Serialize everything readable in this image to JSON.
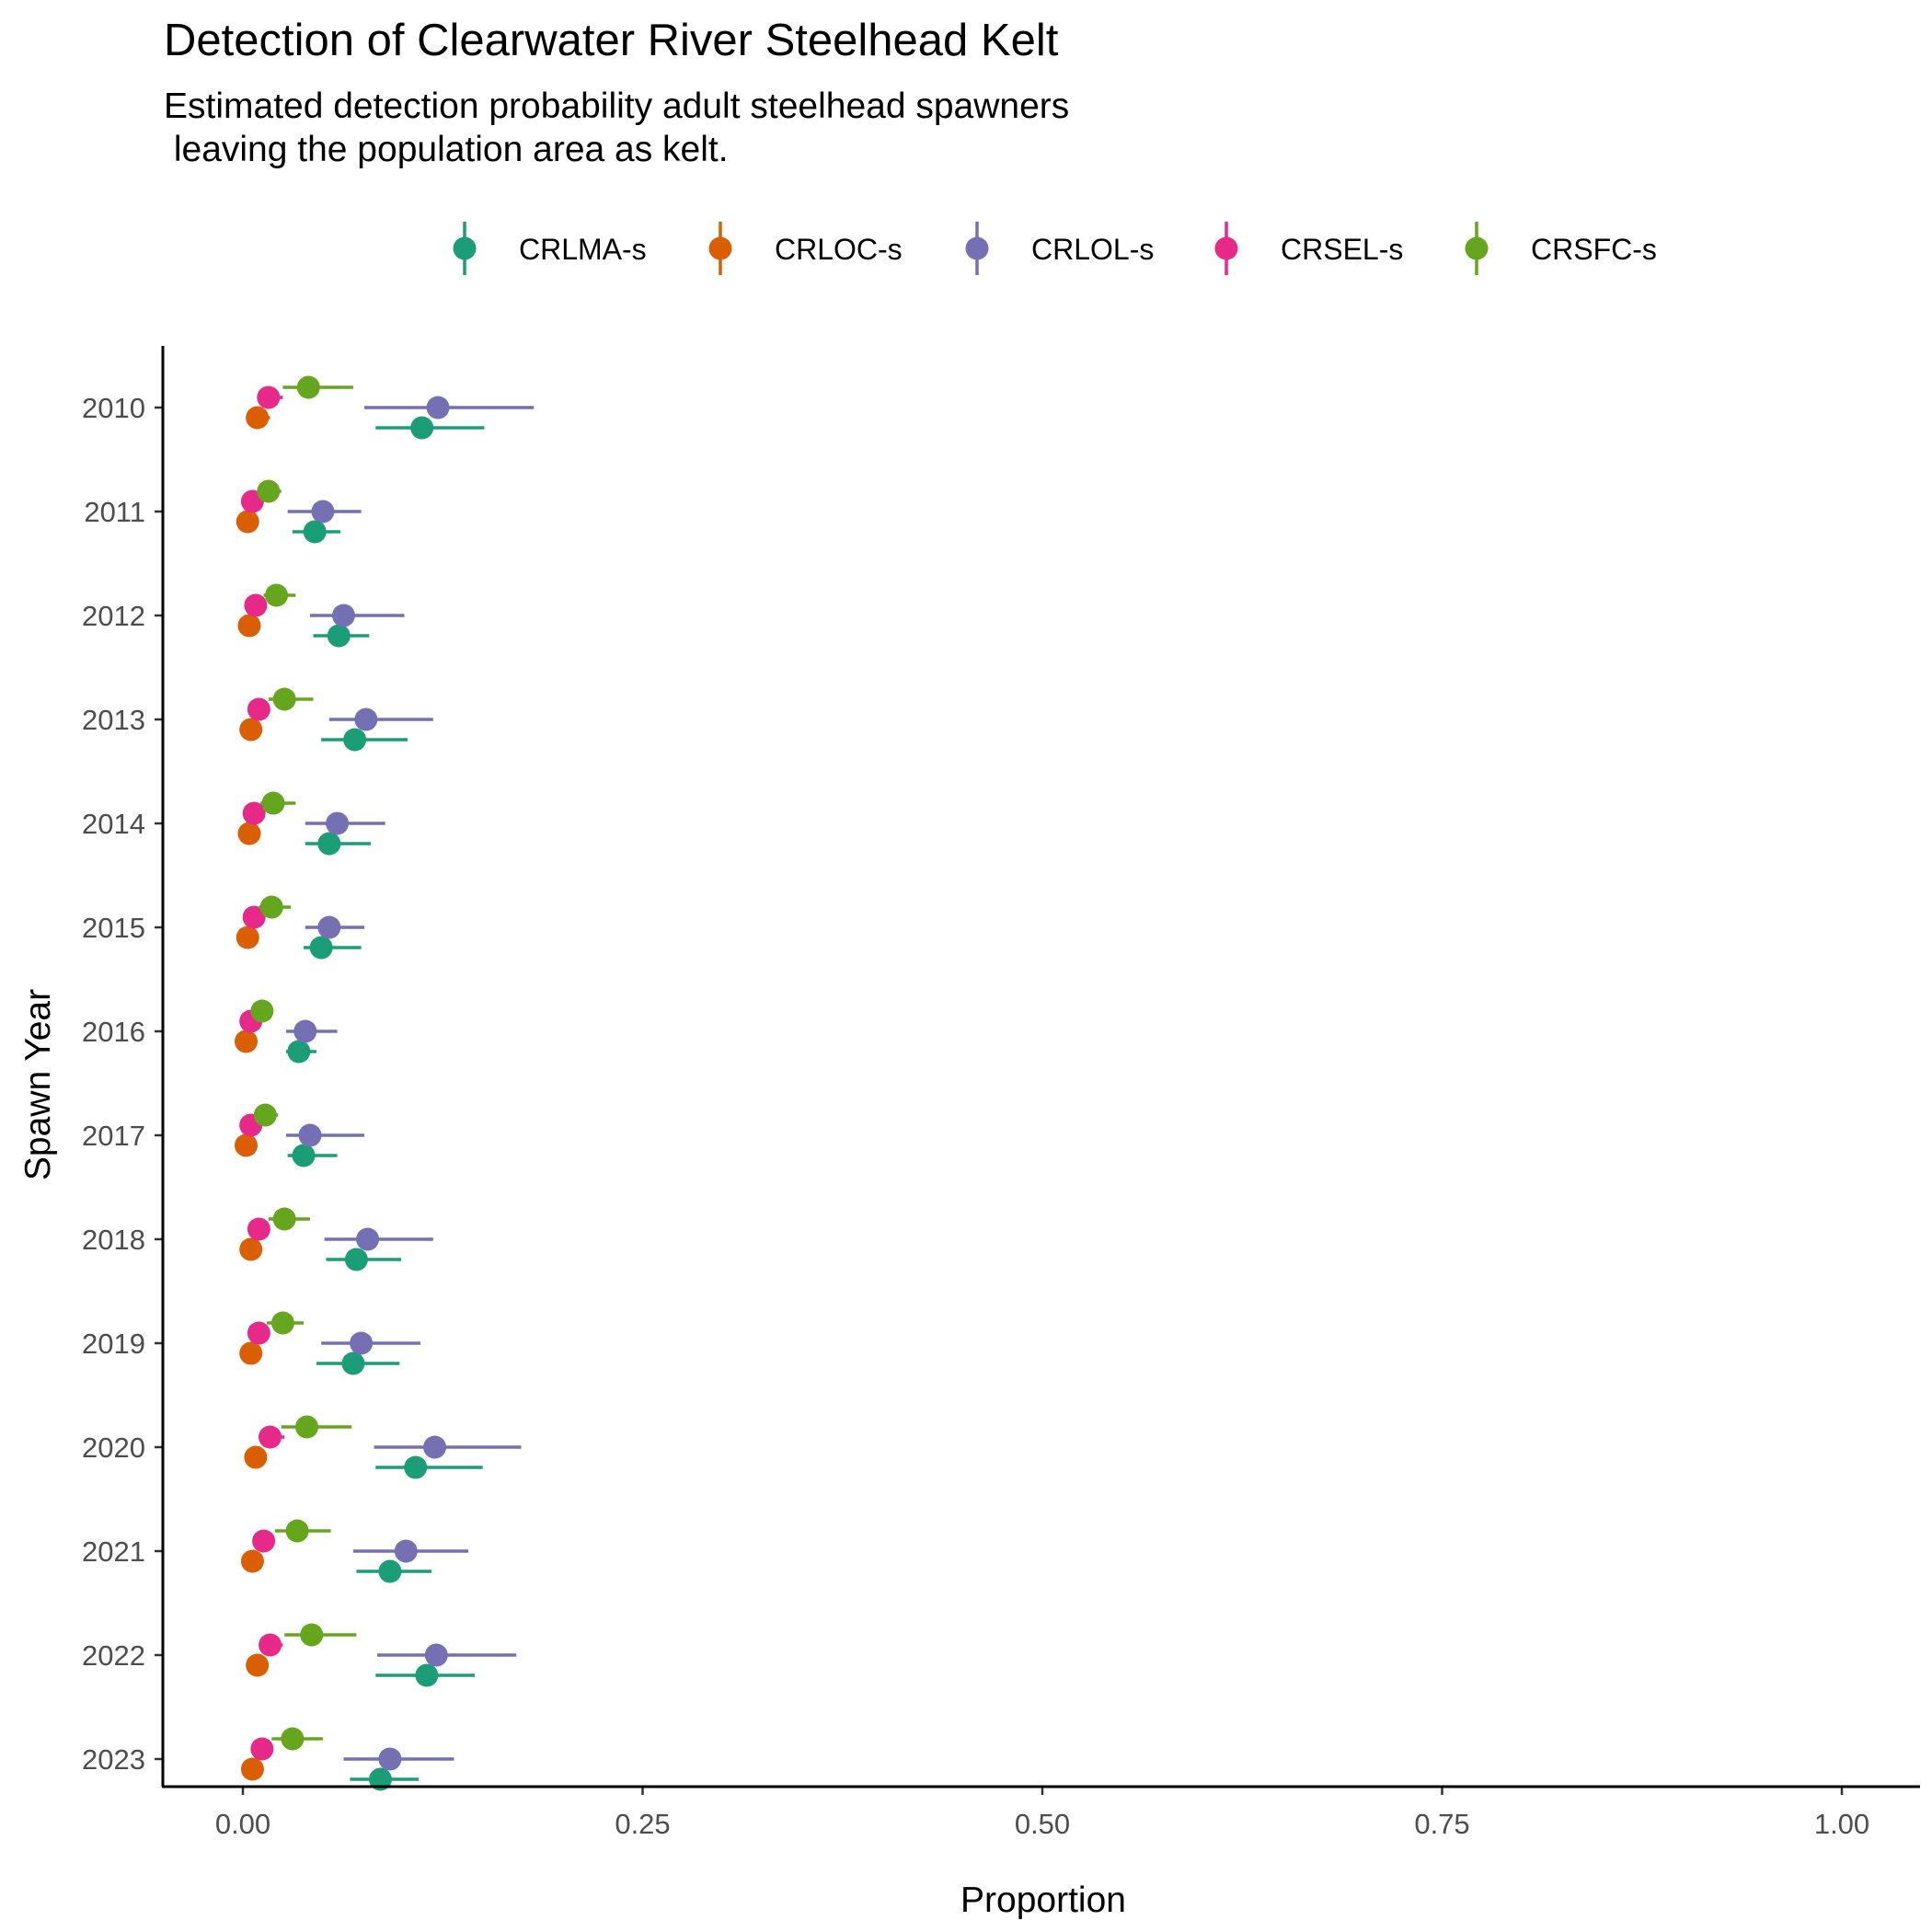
{
  "chart_data": {
    "type": "scatter",
    "title": "Detection of Clearwater River Steelhead Kelt",
    "subtitle": "Estimated detection probability adult steelhead spawners\n leaving the population area as kelt.",
    "xlabel": "Proportion",
    "ylabel": "Spawn Year",
    "xlim": [
      0,
      1
    ],
    "x_ticks": [
      "0.00",
      "0.25",
      "0.50",
      "0.75",
      "1.00"
    ],
    "categories": [
      "2010",
      "2011",
      "2012",
      "2013",
      "2014",
      "2015",
      "2016",
      "2017",
      "2018",
      "2019",
      "2020",
      "2021",
      "2022",
      "2023"
    ],
    "legend_position": "top",
    "grid": false,
    "series": [
      {
        "name": "CRLMA-s",
        "color": "#1b9e77",
        "values": [
          0.112,
          0.045,
          0.06,
          0.07,
          0.054,
          0.049,
          0.035,
          0.038,
          0.071,
          0.069,
          0.108,
          0.092,
          0.115,
          0.086
        ],
        "lower": [
          0.083,
          0.031,
          0.044,
          0.049,
          0.039,
          0.038,
          0.027,
          0.028,
          0.052,
          0.046,
          0.083,
          0.071,
          0.083,
          0.067
        ],
        "upper": [
          0.151,
          0.061,
          0.079,
          0.103,
          0.08,
          0.074,
          0.046,
          0.059,
          0.099,
          0.098,
          0.15,
          0.118,
          0.145,
          0.11
        ]
      },
      {
        "name": "CRLOC-s",
        "color": "#d95f02",
        "values": [
          0.009,
          0.003,
          0.004,
          0.005,
          0.004,
          0.003,
          0.002,
          0.002,
          0.005,
          0.005,
          0.008,
          0.006,
          0.009,
          0.006
        ],
        "lower": [
          0.004,
          0.001,
          0.002,
          0.002,
          0.002,
          0.001,
          0.001,
          0.001,
          0.002,
          0.002,
          0.004,
          0.003,
          0.004,
          0.003
        ],
        "upper": [
          0.017,
          0.006,
          0.008,
          0.009,
          0.007,
          0.006,
          0.004,
          0.004,
          0.009,
          0.009,
          0.015,
          0.011,
          0.016,
          0.011
        ]
      },
      {
        "name": "CRLOL-s",
        "color": "#7570b3",
        "values": [
          0.122,
          0.05,
          0.063,
          0.077,
          0.059,
          0.054,
          0.039,
          0.042,
          0.078,
          0.074,
          0.12,
          0.102,
          0.121,
          0.092
        ],
        "lower": [
          0.076,
          0.028,
          0.042,
          0.054,
          0.039,
          0.039,
          0.027,
          0.027,
          0.051,
          0.049,
          0.082,
          0.069,
          0.084,
          0.063
        ],
        "upper": [
          0.182,
          0.074,
          0.101,
          0.119,
          0.089,
          0.076,
          0.059,
          0.076,
          0.119,
          0.111,
          0.174,
          0.141,
          0.171,
          0.132
        ]
      },
      {
        "name": "CRSEL-s",
        "color": "#e7298a",
        "values": [
          0.016,
          0.006,
          0.008,
          0.01,
          0.007,
          0.007,
          0.005,
          0.005,
          0.01,
          0.01,
          0.017,
          0.013,
          0.017,
          0.012
        ],
        "lower": [
          0.01,
          0.003,
          0.005,
          0.006,
          0.004,
          0.004,
          0.003,
          0.003,
          0.006,
          0.006,
          0.01,
          0.008,
          0.011,
          0.007
        ],
        "upper": [
          0.025,
          0.01,
          0.013,
          0.015,
          0.011,
          0.011,
          0.008,
          0.008,
          0.015,
          0.015,
          0.026,
          0.02,
          0.025,
          0.018
        ]
      },
      {
        "name": "CRSFC-s",
        "color": "#66a61e",
        "values": [
          0.041,
          0.016,
          0.021,
          0.026,
          0.019,
          0.018,
          0.012,
          0.014,
          0.026,
          0.025,
          0.04,
          0.034,
          0.043,
          0.031
        ],
        "lower": [
          0.025,
          0.009,
          0.013,
          0.016,
          0.011,
          0.01,
          0.007,
          0.008,
          0.016,
          0.015,
          0.024,
          0.02,
          0.026,
          0.018
        ],
        "upper": [
          0.069,
          0.024,
          0.033,
          0.044,
          0.033,
          0.03,
          0.018,
          0.022,
          0.042,
          0.038,
          0.068,
          0.055,
          0.071,
          0.05
        ]
      }
    ]
  }
}
